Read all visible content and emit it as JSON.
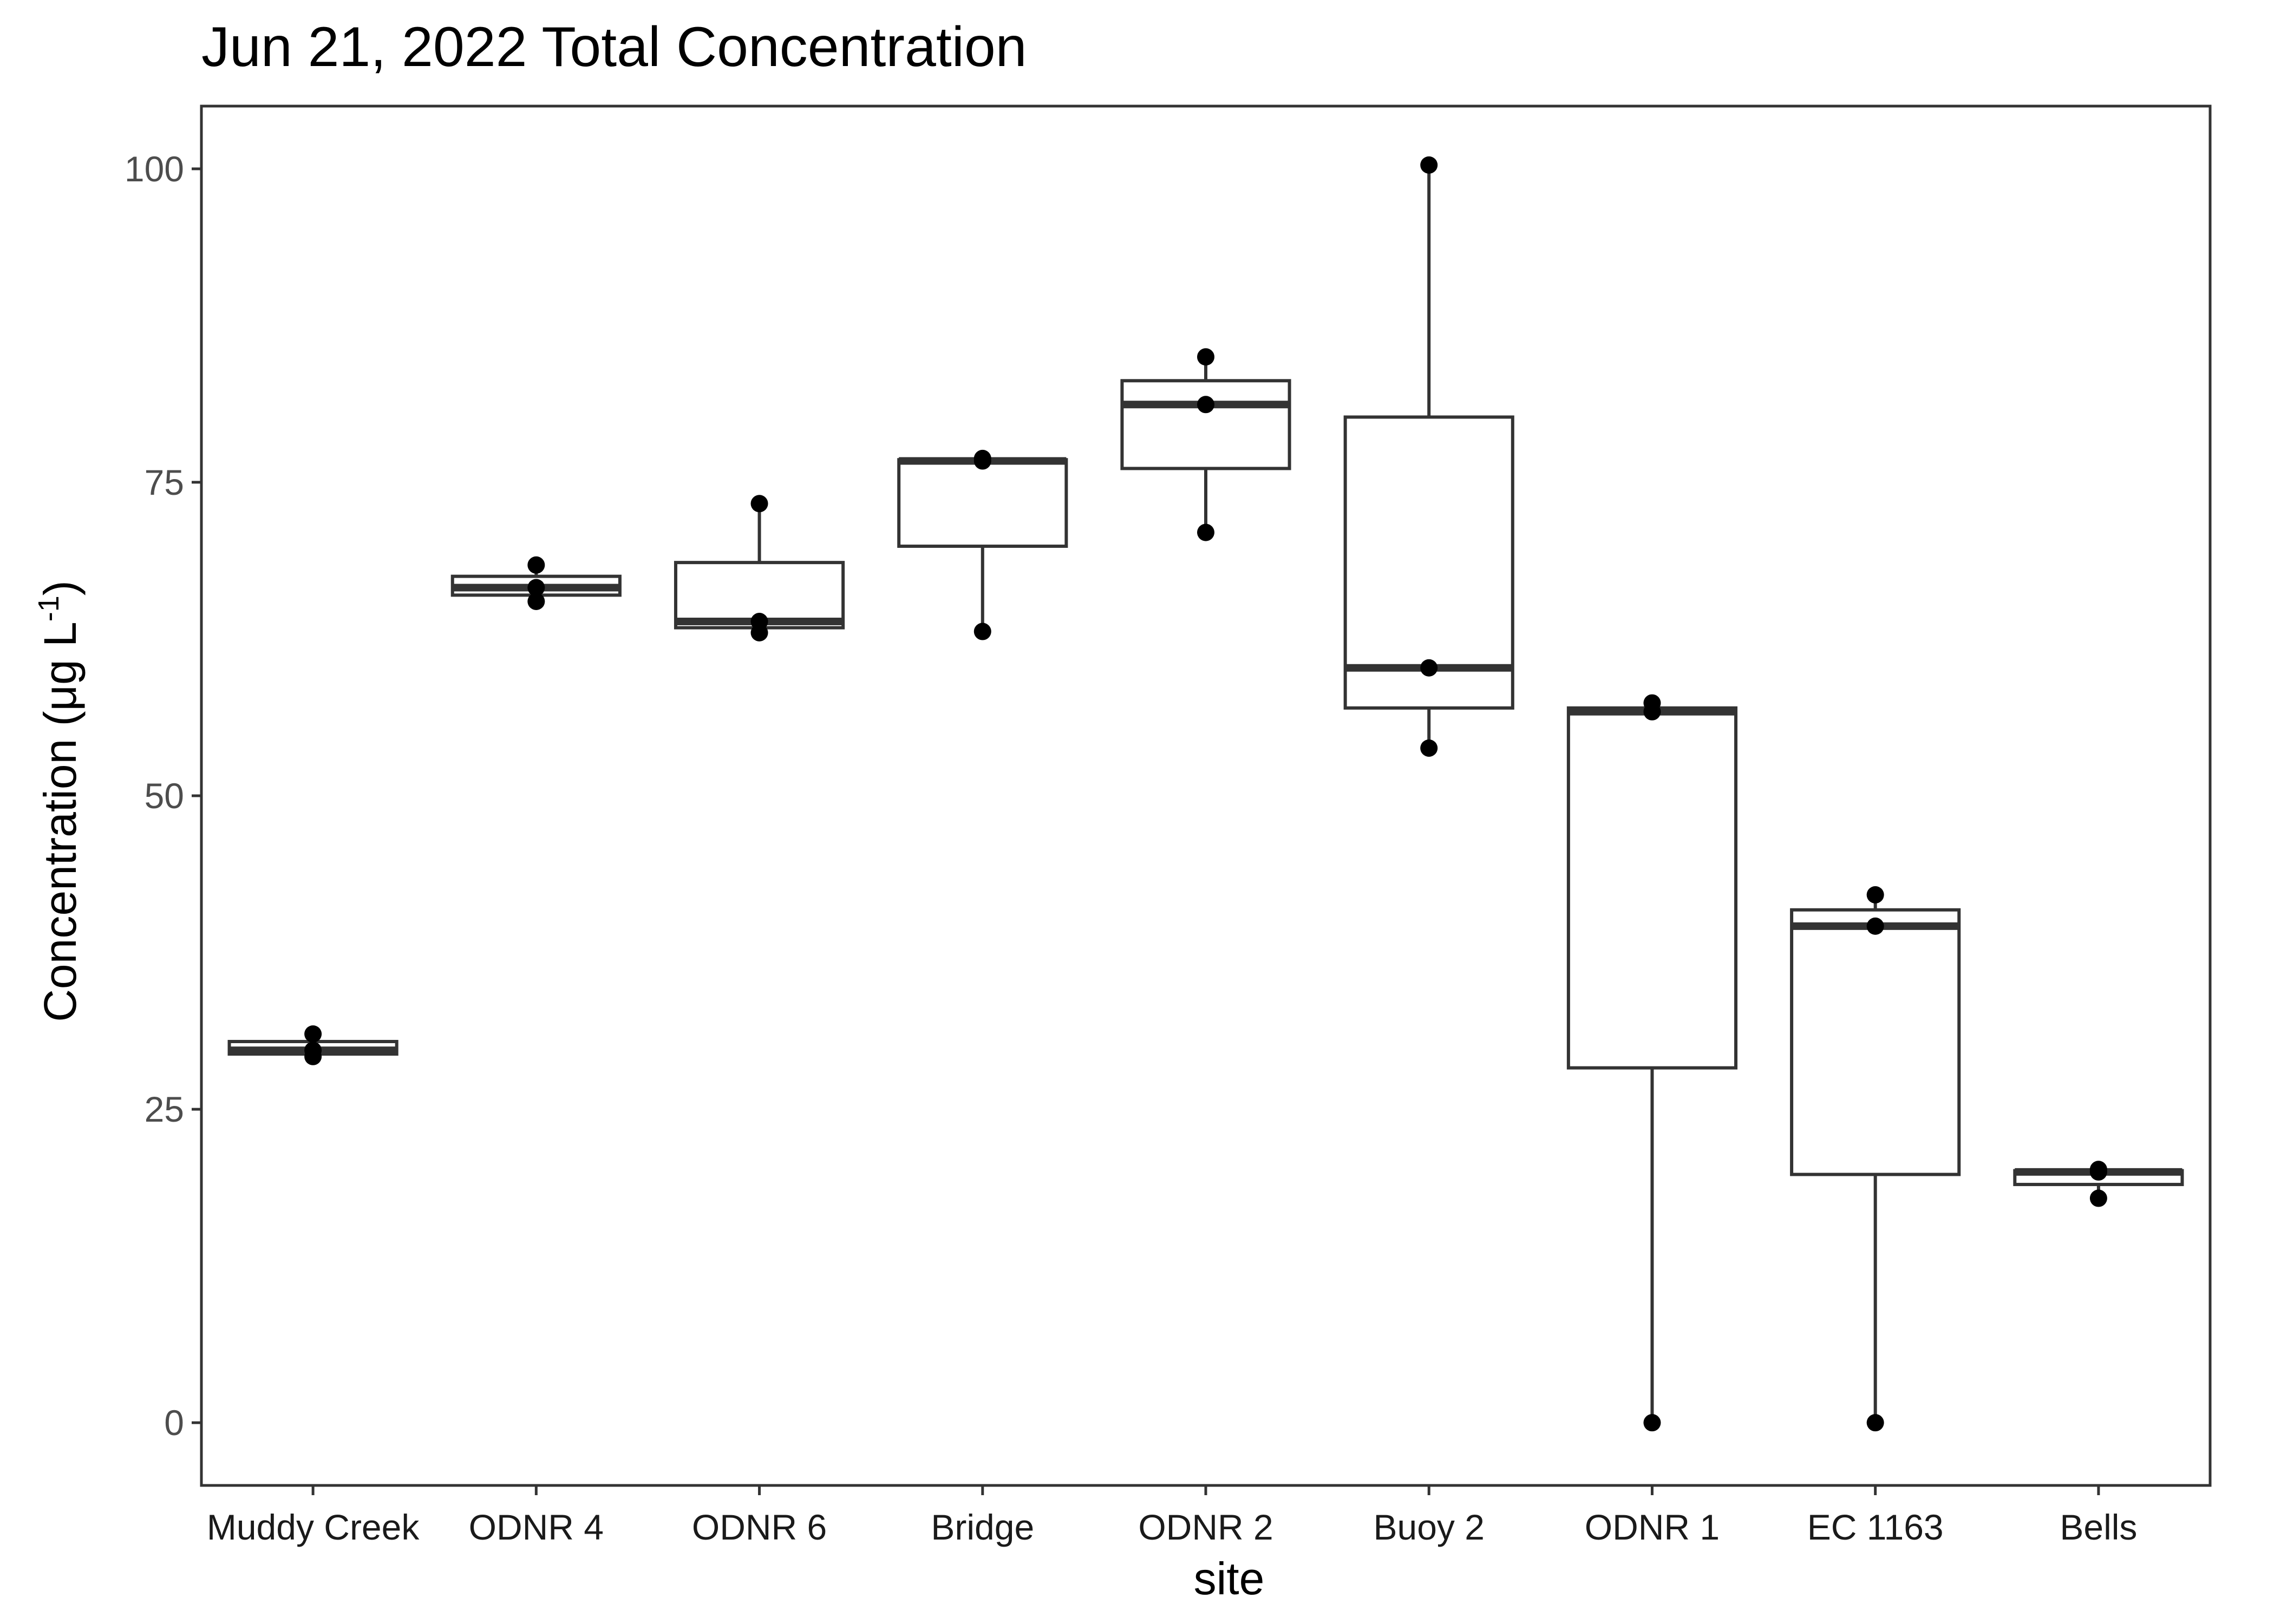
{
  "chart_data": {
    "type": "box",
    "title": "Jun 21, 2022 Total Concentration",
    "xlabel": "site",
    "ylabel": "Concentration (μg L",
    "ylabel_superscript": "-1",
    "ylabel_suffix": ")",
    "ylim": [
      -5,
      105
    ],
    "yticks": [
      0,
      25,
      50,
      75,
      100
    ],
    "grid": false,
    "categories": [
      "Muddy Creek",
      "ODNR 4",
      "ODNR 6",
      "Bridge",
      "ODNR 2",
      "Buoy 2",
      "ODNR 1",
      "EC 1163",
      "Bells"
    ],
    "boxes": [
      {
        "site": "Muddy Creek",
        "min": 29.2,
        "q1": 29.4,
        "median": 29.7,
        "q3": 30.4,
        "max": 31.0
      },
      {
        "site": "ODNR 4",
        "min": 65.5,
        "q1": 66.0,
        "median": 66.6,
        "q3": 67.5,
        "max": 68.4
      },
      {
        "site": "ODNR 6",
        "min": 63.0,
        "q1": 63.4,
        "median": 63.9,
        "q3": 68.6,
        "max": 73.3
      },
      {
        "site": "Bridge",
        "min": 63.1,
        "q1": 69.9,
        "median": 76.7,
        "q3": 76.8,
        "max": 76.9
      },
      {
        "site": "ODNR 2",
        "min": 71.0,
        "q1": 76.1,
        "median": 81.2,
        "q3": 83.1,
        "max": 85.0
      },
      {
        "site": "Buoy 2",
        "min": 53.8,
        "q1": 57.0,
        "median": 60.2,
        "q3": 80.2,
        "max": 100.3
      },
      {
        "site": "ODNR 1",
        "min": 0.0,
        "q1": 28.3,
        "median": 56.7,
        "q3": 57.0,
        "max": 57.4
      },
      {
        "site": "EC 1163",
        "min": 0.0,
        "q1": 19.8,
        "median": 39.6,
        "q3": 40.9,
        "max": 42.1
      },
      {
        "site": "Bells",
        "min": 17.9,
        "q1": 19.0,
        "median": 20.0,
        "q3": 20.1,
        "max": 20.2
      }
    ],
    "points": [
      {
        "site": "Muddy Creek",
        "values": [
          29.2,
          29.7,
          31.0
        ]
      },
      {
        "site": "ODNR 4",
        "values": [
          65.5,
          66.6,
          68.4
        ]
      },
      {
        "site": "ODNR 6",
        "values": [
          63.0,
          63.9,
          73.3
        ]
      },
      {
        "site": "Bridge",
        "values": [
          63.1,
          76.7,
          76.9
        ]
      },
      {
        "site": "ODNR 2",
        "values": [
          71.0,
          81.2,
          85.0
        ]
      },
      {
        "site": "Buoy 2",
        "values": [
          53.8,
          60.2,
          100.3
        ]
      },
      {
        "site": "ODNR 1",
        "values": [
          0.0,
          56.7,
          57.4
        ]
      },
      {
        "site": "EC 1163",
        "values": [
          0.0,
          39.6,
          42.1
        ]
      },
      {
        "site": "Bells",
        "values": [
          17.9,
          20.0,
          20.2
        ]
      }
    ],
    "colors": {
      "box_stroke": "#333333",
      "box_fill": "#ffffff",
      "point": "#000000",
      "panel_border": "#333333",
      "tick_text": "#4d4d4d"
    }
  }
}
